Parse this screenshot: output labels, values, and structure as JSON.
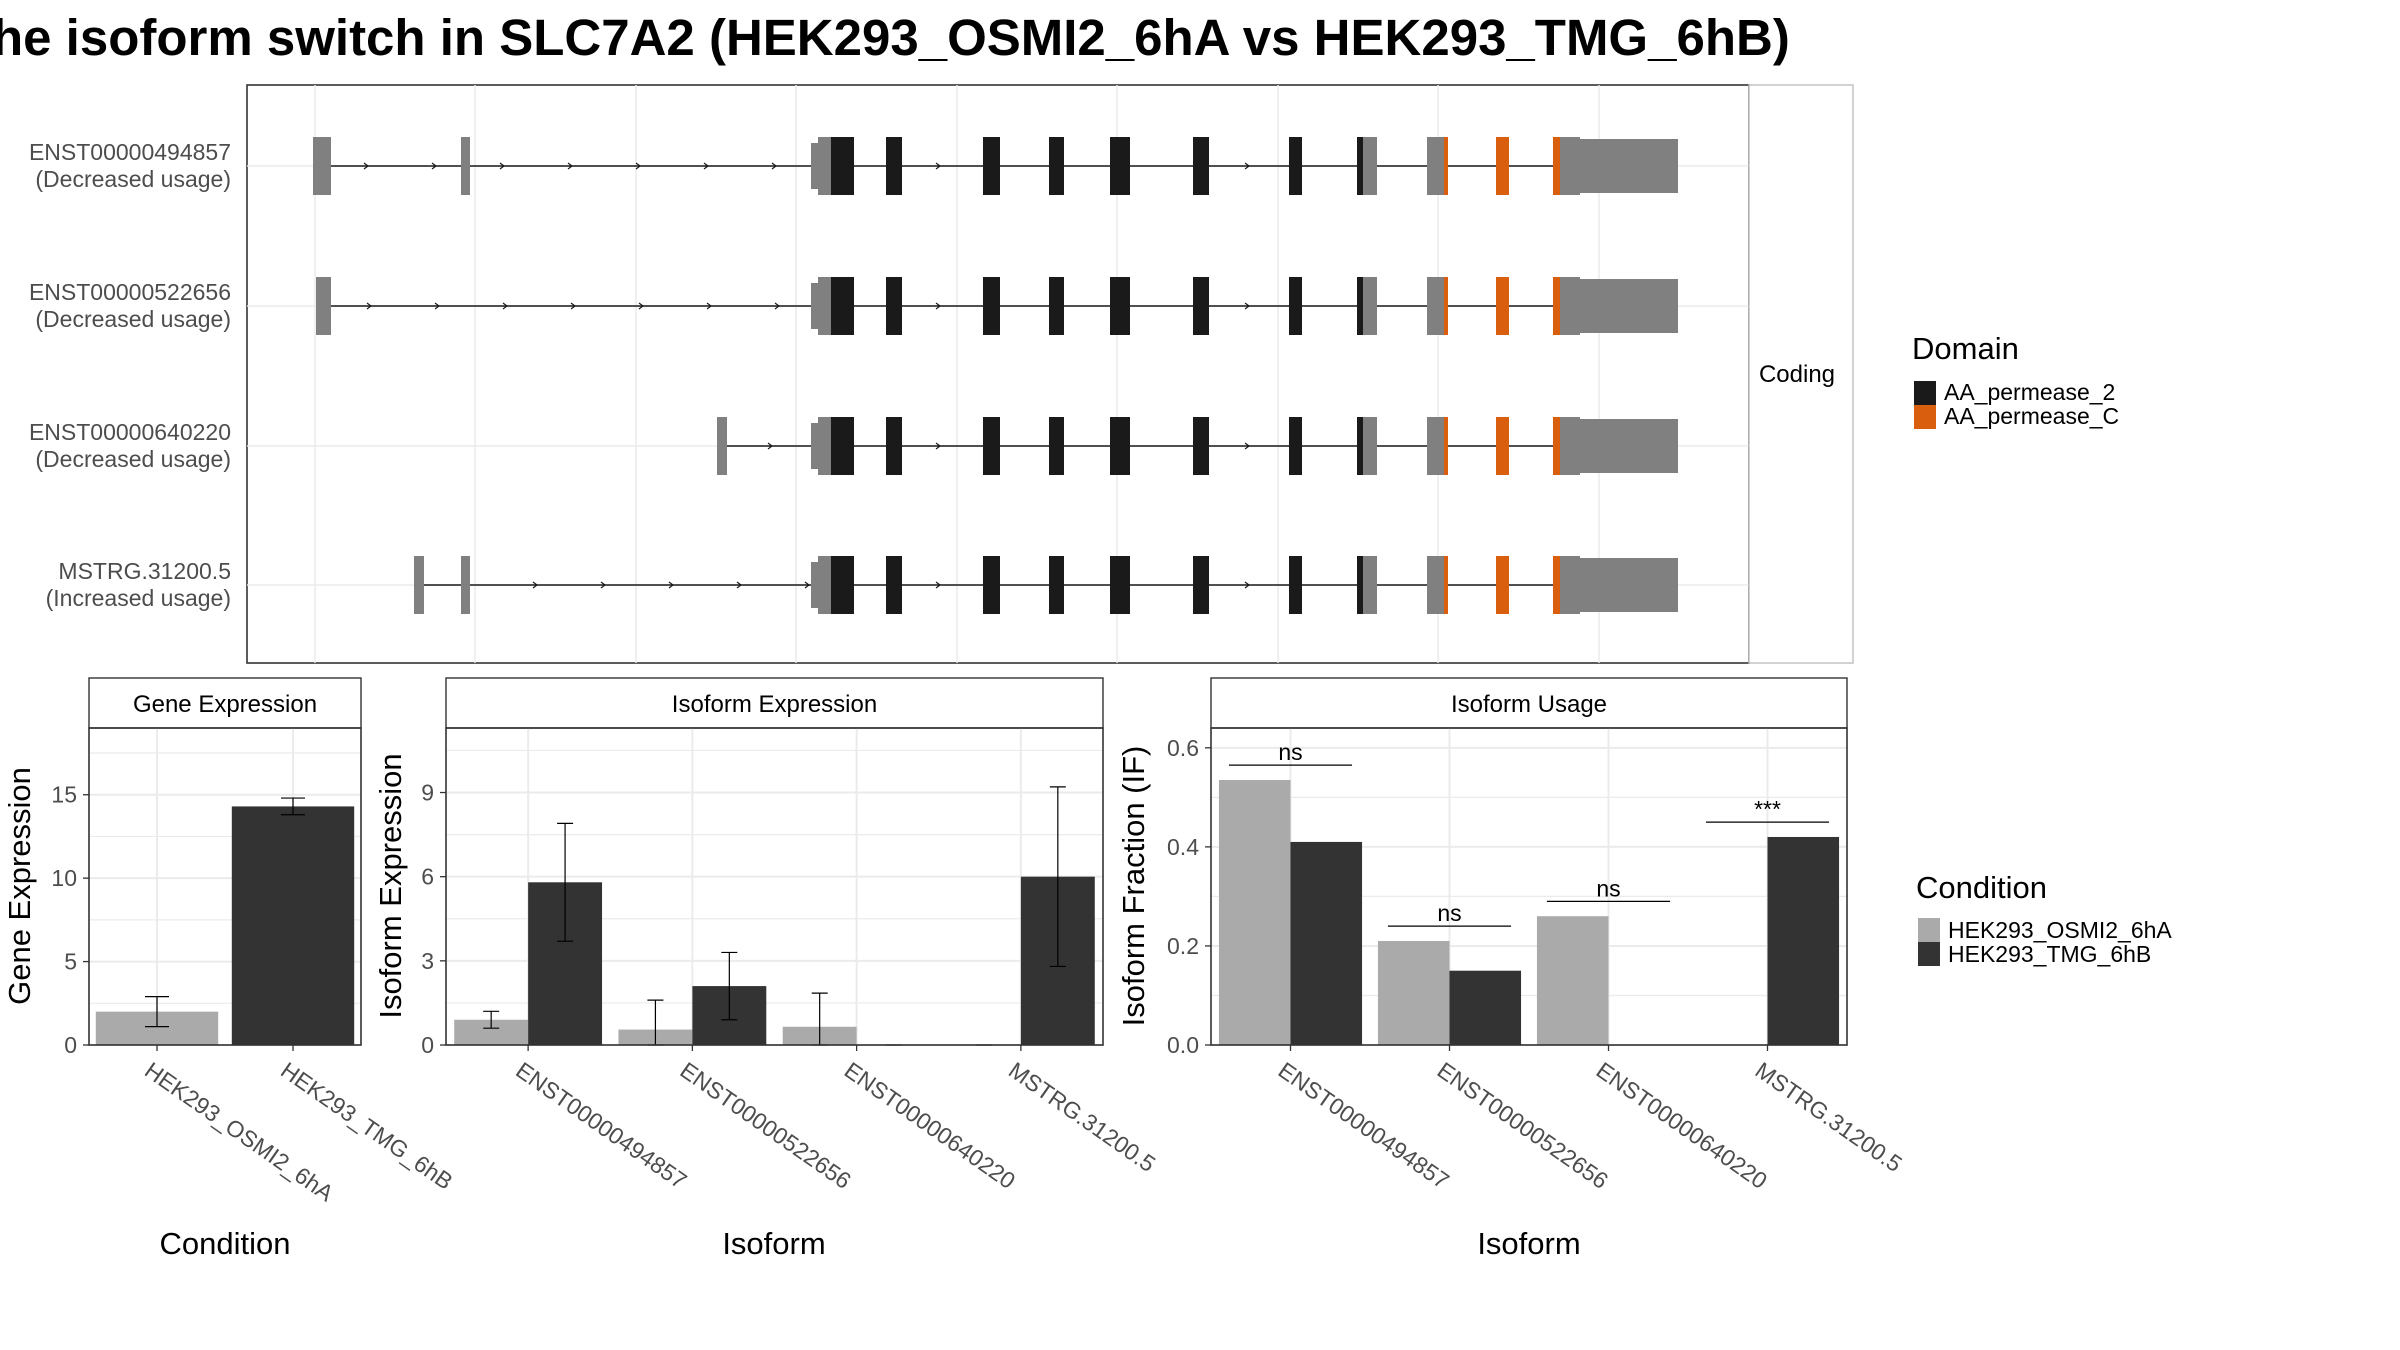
{
  "title": "he isoform switch in SLC7A2 (HEK293_OSMI2_6hA vs HEK293_TMG_6hB)",
  "structure": {
    "facet_label": "Coding",
    "transcripts": [
      {
        "id": "ENST00000494857",
        "note": "(Decreased usage)"
      },
      {
        "id": "ENST00000522656",
        "note": "(Decreased usage)"
      },
      {
        "id": "ENST00000640220",
        "note": "(Decreased usage)"
      },
      {
        "id": "MSTRG.31200.5",
        "note": "(Increased usage)"
      }
    ]
  },
  "domain_legend": {
    "title": "Domain",
    "items": [
      {
        "label": "AA_permease_2",
        "color": "#1a1a1a"
      },
      {
        "label": "AA_permease_C",
        "color": "#d95f0e"
      }
    ]
  },
  "condition_legend": {
    "title": "Condition",
    "items": [
      {
        "label": "HEK293_OSMI2_6hA",
        "color": "#aaaaaa"
      },
      {
        "label": "HEK293_TMG_6hB",
        "color": "#333333"
      }
    ]
  },
  "chart_data": [
    {
      "type": "bar",
      "panel": "Gene Expression",
      "categories": [
        "HEK293_OSMI2_6hA",
        "HEK293_TMG_6hB"
      ],
      "values": [
        2.0,
        14.3
      ],
      "errors": [
        [
          1.1,
          2.9
        ],
        [
          13.8,
          14.8
        ]
      ],
      "colors": [
        "#aaaaaa",
        "#333333"
      ],
      "xlabel": "Condition",
      "ylabel": "Gene Expression",
      "ylim": [
        0,
        19
      ],
      "yticks": [
        0,
        5,
        10,
        15
      ]
    },
    {
      "type": "bar",
      "panel": "Isoform Expression",
      "categories": [
        "ENST00000494857",
        "ENST00000522656",
        "ENST00000640220",
        "MSTRG.31200.5"
      ],
      "series": [
        {
          "name": "HEK293_OSMI2_6hA",
          "values": [
            0.9,
            0.55,
            0.65,
            0.0
          ],
          "errors": [
            [
              0.6,
              1.2
            ],
            [
              0.0,
              1.6
            ],
            [
              0.0,
              1.85
            ],
            [
              0.0,
              0.0
            ]
          ]
        },
        {
          "name": "HEK293_TMG_6hB",
          "values": [
            5.8,
            2.1,
            0.0,
            6.0
          ],
          "errors": [
            [
              3.7,
              7.9
            ],
            [
              0.9,
              3.3
            ],
            [
              0.0,
              0.0
            ],
            [
              2.8,
              9.2
            ]
          ]
        }
      ],
      "xlabel": "Isoform",
      "ylabel": "Isoform Expression",
      "ylim": [
        0,
        11.3
      ],
      "yticks": [
        0,
        3,
        6,
        9
      ]
    },
    {
      "type": "bar",
      "panel": "Isoform Usage",
      "categories": [
        "ENST00000494857",
        "ENST00000522656",
        "ENST00000640220",
        "MSTRG.31200.5"
      ],
      "series": [
        {
          "name": "HEK293_OSMI2_6hA",
          "values": [
            0.535,
            0.21,
            0.26,
            0.0
          ]
        },
        {
          "name": "HEK293_TMG_6hB",
          "values": [
            0.41,
            0.15,
            0.0,
            0.42
          ]
        }
      ],
      "significance": [
        "ns",
        "ns",
        "ns",
        "***"
      ],
      "xlabel": "Isoform",
      "ylabel": "Isoform Fraction (IF)",
      "ylim": [
        0,
        0.64
      ],
      "yticks": [
        0.0,
        0.2,
        0.4,
        0.6
      ]
    }
  ]
}
